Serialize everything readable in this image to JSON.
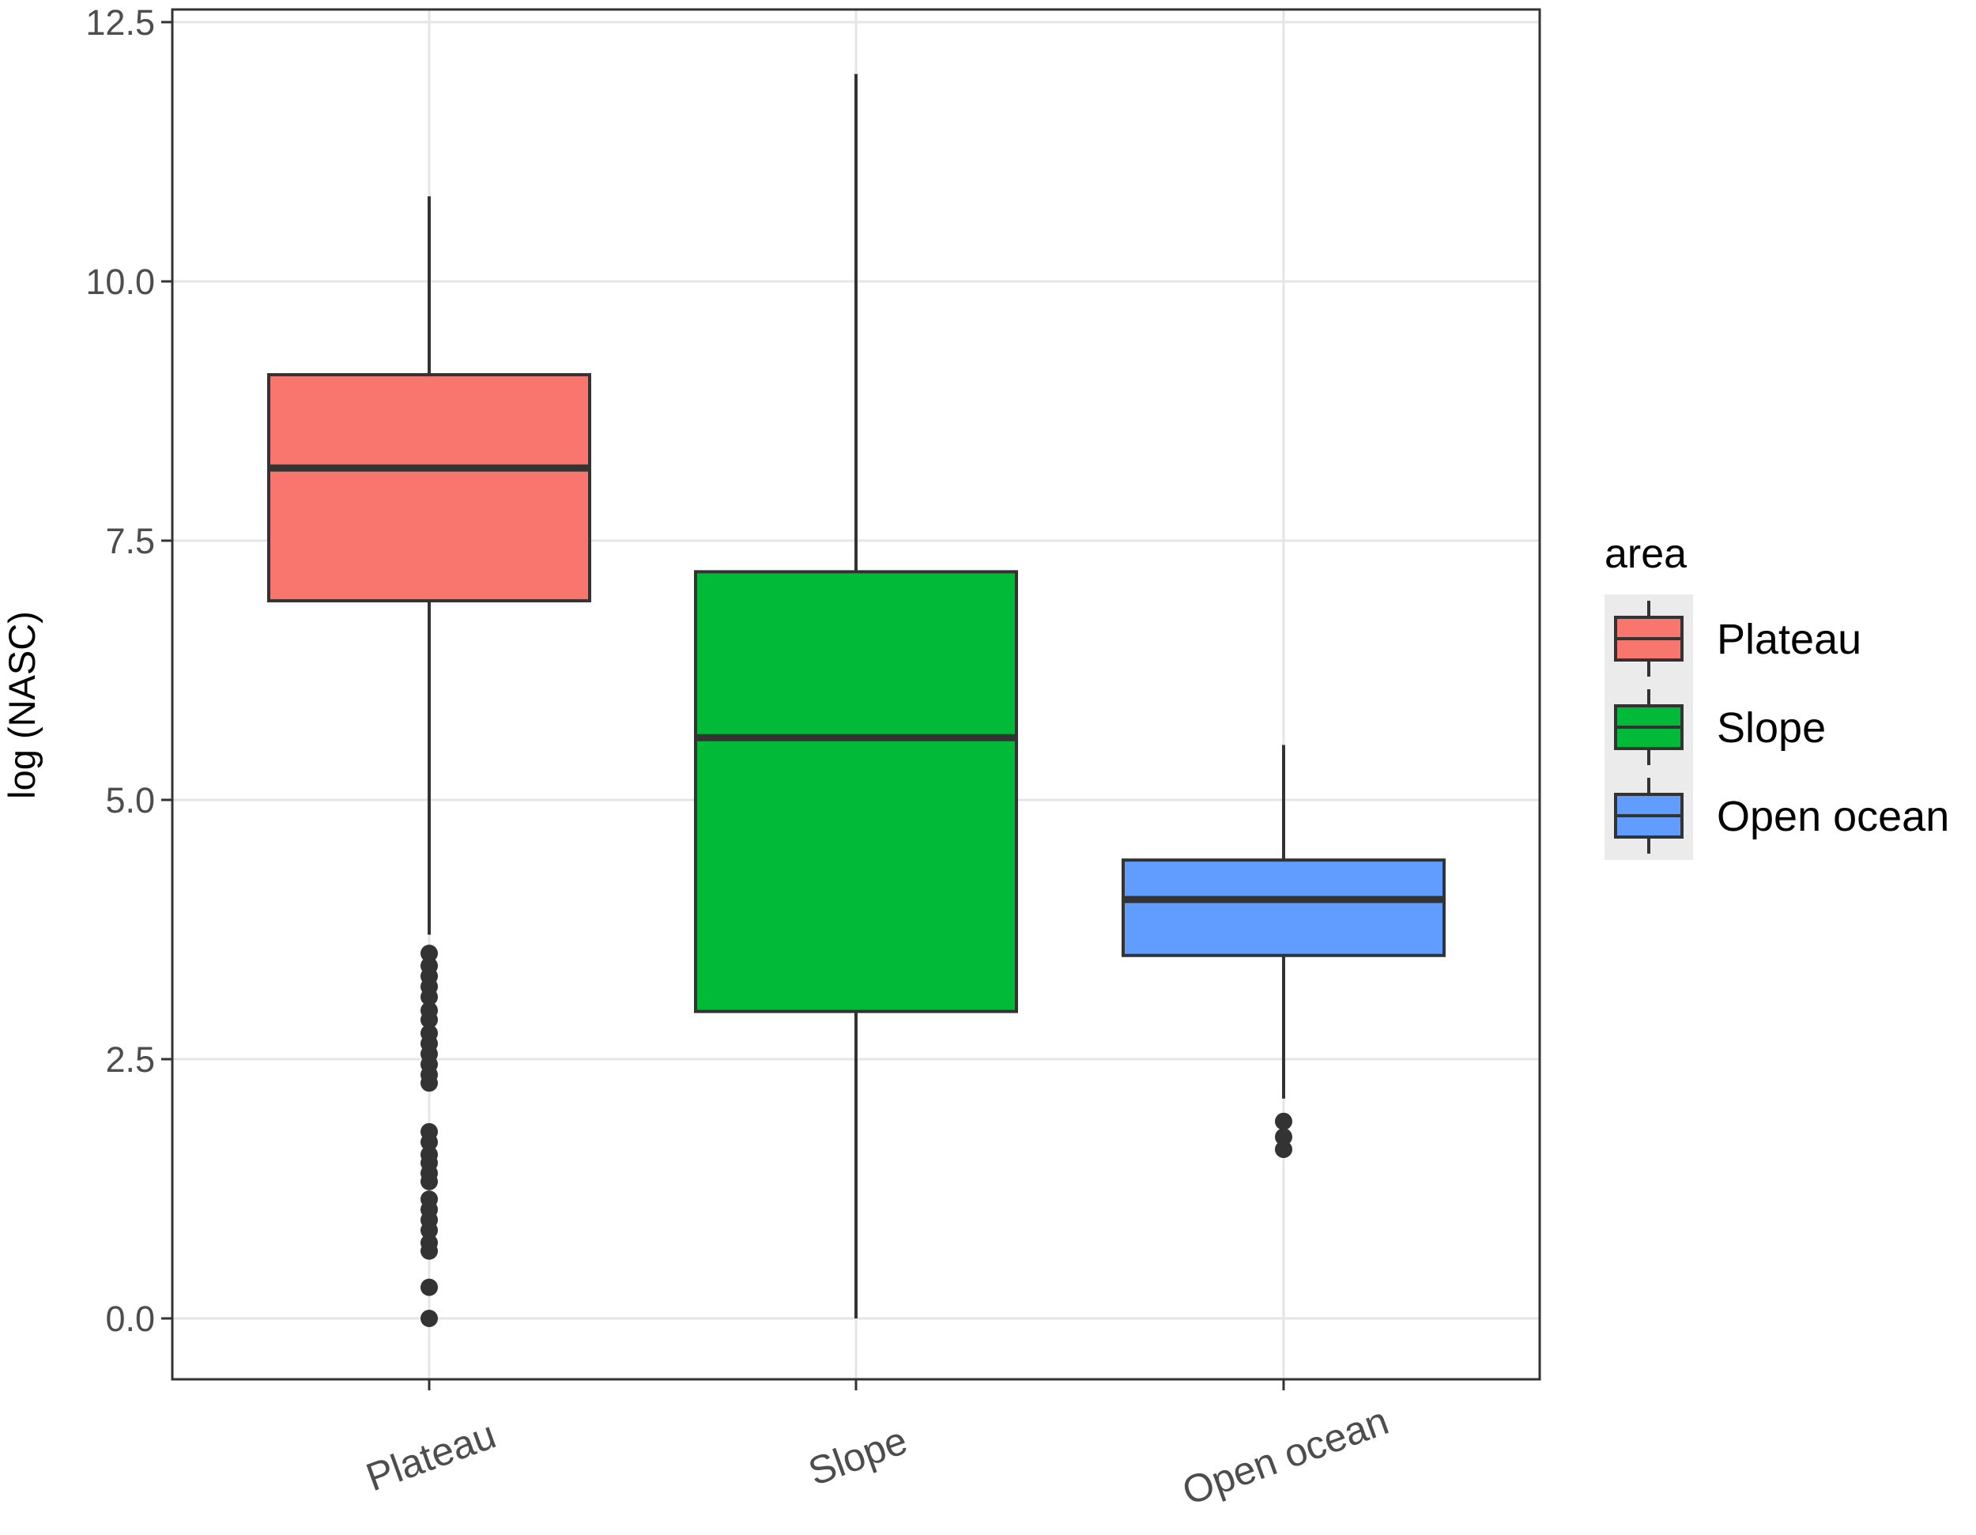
{
  "chart_data": {
    "type": "boxplot",
    "title": "",
    "xlabel": "",
    "ylabel": "log (NASC)",
    "ylim": [
      -0.6,
      12.6
    ],
    "yticks": [
      0.0,
      2.5,
      5.0,
      7.5,
      10.0,
      12.5
    ],
    "ytick_labels": [
      "0.0",
      "2.5",
      "5.0",
      "7.5",
      "10.0",
      "12.5"
    ],
    "grid": true,
    "categories": [
      "Plateau",
      "Slope",
      "Open ocean"
    ],
    "boxes": [
      {
        "category": "Plateau",
        "fill": "#F8766D",
        "whisker_low": 3.7,
        "q1": 6.92,
        "median": 8.2,
        "q3": 9.1,
        "whisker_high": 10.82,
        "outliers": [
          3.52,
          3.4,
          3.3,
          3.2,
          3.1,
          2.97,
          2.88,
          2.75,
          2.65,
          2.55,
          2.45,
          2.35,
          2.27,
          1.8,
          1.7,
          1.58,
          1.5,
          1.4,
          1.32,
          1.15,
          1.05,
          0.95,
          0.85,
          0.73,
          0.65,
          0.3,
          0.0
        ]
      },
      {
        "category": "Slope",
        "fill": "#00BA38",
        "whisker_low": 0.0,
        "q1": 2.96,
        "median": 5.6,
        "q3": 7.2,
        "whisker_high": 12.0,
        "outliers": []
      },
      {
        "category": "Open ocean",
        "fill": "#619CFF",
        "whisker_low": 2.12,
        "q1": 3.5,
        "median": 4.04,
        "q3": 4.42,
        "whisker_high": 5.53,
        "outliers": [
          1.9,
          1.75,
          1.63
        ]
      }
    ],
    "legend": {
      "title": "area",
      "placement": "right",
      "items": [
        {
          "label": "Plateau",
          "fill": "#F8766D"
        },
        {
          "label": "Slope",
          "fill": "#00BA38"
        },
        {
          "label": "Open ocean",
          "fill": "#619CFF"
        }
      ]
    },
    "colors": {
      "grid": "#E5E5E5",
      "panel_border": "#333333",
      "box_border": "#333333",
      "legend_key_background": "#EBEBEB"
    }
  }
}
